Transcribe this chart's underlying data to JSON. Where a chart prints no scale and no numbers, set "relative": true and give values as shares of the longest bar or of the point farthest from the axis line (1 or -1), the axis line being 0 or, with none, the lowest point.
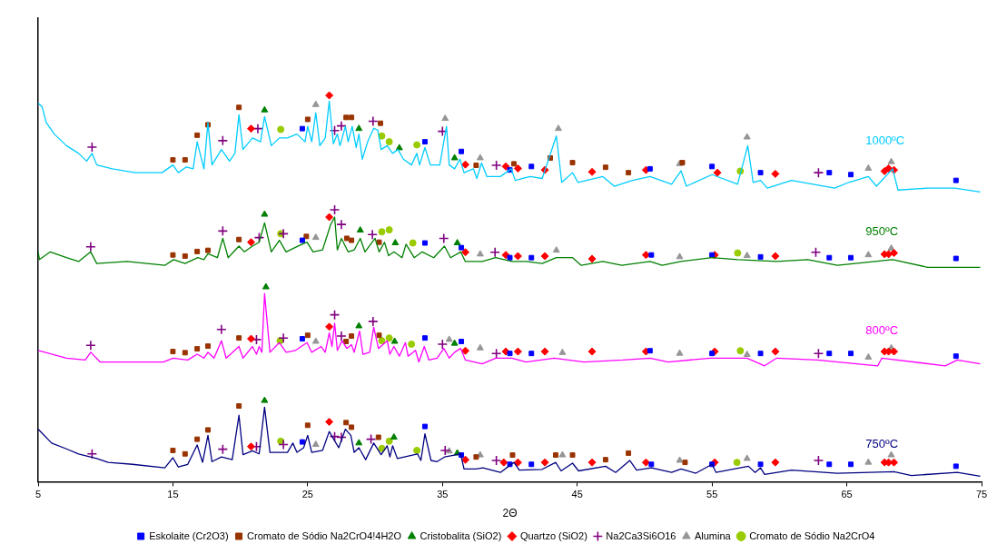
{
  "chart_data": {
    "type": "line",
    "xlabel": "2Θ",
    "xlim": [
      5,
      75
    ],
    "xticks": [
      5,
      15,
      25,
      35,
      45,
      55,
      65,
      75
    ],
    "relative": true,
    "legend": "bottom",
    "series": [
      {
        "type": "line",
        "name": "1000ºC",
        "color": "#00ccff",
        "marker": "none",
        "x": [
          5,
          5.3,
          5.6,
          6.2,
          7.1,
          8,
          8.6,
          9,
          9.35,
          10.5,
          12.2,
          14.2,
          15,
          15.4,
          16,
          16.5,
          16.8,
          17.3,
          17.6,
          17.9,
          18.6,
          19.2,
          19.6,
          19.9,
          20.2,
          20.9,
          21.5,
          21.8,
          22.3,
          22.9,
          23.5,
          24.2,
          24.8,
          25,
          25.3,
          25.6,
          25.9,
          26.3,
          26.6,
          26.9,
          27.2,
          27.4,
          27.8,
          28,
          28.3,
          28.6,
          28.8,
          29.05,
          29.45,
          29.9,
          30.2,
          30.45,
          30.9,
          31.3,
          31.7,
          32.1,
          32.7,
          33.1,
          33.3,
          33.7,
          34.1,
          34.8,
          35.3,
          35.5,
          35.9,
          36.3,
          36.6,
          37.3,
          37.55,
          37.9,
          38.3,
          39.3,
          40.1,
          40.4,
          41.5,
          42.4,
          43.45,
          43.85,
          44.65,
          45.05,
          46.9,
          47.75,
          49.1,
          50.4,
          52,
          52.7,
          53.1,
          55,
          56.9,
          57.65,
          58.05,
          58.6,
          59.1,
          60.9,
          64.1,
          65.15,
          66.6,
          67.2,
          68.4,
          68.8,
          71,
          73,
          74.9
        ],
        "values": [
          0.98,
          0.97,
          0.93,
          0.9,
          0.87,
          0.85,
          0.83,
          0.85,
          0.82,
          0.81,
          0.8,
          0.8,
          0.82,
          0.8,
          0.815,
          0.81,
          0.88,
          0.81,
          0.93,
          0.82,
          0.86,
          0.83,
          0.85,
          0.95,
          0.86,
          0.89,
          0.88,
          0.945,
          0.87,
          0.89,
          0.89,
          0.9,
          0.88,
          0.92,
          0.88,
          0.955,
          0.87,
          0.89,
          0.985,
          0.875,
          0.9,
          0.87,
          0.92,
          0.88,
          0.92,
          0.865,
          0.9,
          0.835,
          0.88,
          0.915,
          0.91,
          0.86,
          0.87,
          0.85,
          0.86,
          0.835,
          0.82,
          0.85,
          0.82,
          0.865,
          0.82,
          0.82,
          0.92,
          0.82,
          0.81,
          0.835,
          0.8,
          0.81,
          0.785,
          0.825,
          0.79,
          0.79,
          0.81,
          0.78,
          0.79,
          0.785,
          0.895,
          0.775,
          0.8,
          0.775,
          0.79,
          0.765,
          0.78,
          0.79,
          0.77,
          0.805,
          0.765,
          0.795,
          0.77,
          0.87,
          0.775,
          0.78,
          0.76,
          0.78,
          0.76,
          0.775,
          0.79,
          0.765,
          0.81,
          0.755,
          0.76,
          0.76,
          0.75
        ]
      },
      {
        "type": "line",
        "name": "950ºC",
        "color": "#008000",
        "marker": "none",
        "x": [
          5,
          5.1,
          5.9,
          7.1,
          8,
          8.9,
          9.35,
          11.6,
          14.4,
          15.05,
          15.9,
          16.85,
          17.3,
          17.6,
          18.3,
          18.7,
          19.1,
          19.9,
          20.3,
          20.9,
          21.4,
          21.8,
          22.3,
          22.9,
          23.4,
          24.3,
          24.95,
          25.4,
          26.1,
          26.7,
          27,
          27.2,
          27.5,
          28,
          28.45,
          28.9,
          29.25,
          30,
          30.3,
          30.7,
          31,
          31.4,
          32,
          32.3,
          32.9,
          33.5,
          34.35,
          35.15,
          35.6,
          36.35,
          36.7,
          37.95,
          38.95,
          40.15,
          41.2,
          42.4,
          43.45,
          44.65,
          45.3,
          46.9,
          48.3,
          50.4,
          51.3,
          52.7,
          55,
          56.9,
          59.8,
          62.1,
          64.3,
          68.4,
          71,
          74.9
        ],
        "values": [
          0.595,
          0.575,
          0.595,
          0.58,
          0.57,
          0.595,
          0.565,
          0.57,
          0.56,
          0.575,
          0.565,
          0.58,
          0.575,
          0.59,
          0.58,
          0.63,
          0.58,
          0.61,
          0.595,
          0.61,
          0.62,
          0.67,
          0.595,
          0.625,
          0.595,
          0.61,
          0.62,
          0.595,
          0.6,
          0.665,
          0.685,
          0.6,
          0.63,
          0.595,
          0.6,
          0.63,
          0.595,
          0.63,
          0.595,
          0.62,
          0.585,
          0.595,
          0.58,
          0.615,
          0.58,
          0.595,
          0.58,
          0.61,
          0.58,
          0.595,
          0.57,
          0.57,
          0.58,
          0.57,
          0.57,
          0.565,
          0.58,
          0.58,
          0.56,
          0.57,
          0.56,
          0.57,
          0.56,
          0.57,
          0.58,
          0.575,
          0.57,
          0.575,
          0.56,
          0.575,
          0.555,
          0.555
        ]
      },
      {
        "type": "line",
        "name": "800ºC",
        "color": "#ff00ff",
        "marker": "none",
        "x": [
          5,
          7.1,
          8.5,
          8.9,
          9.6,
          12.7,
          14.3,
          15,
          16.1,
          16.8,
          17.3,
          17.6,
          18.05,
          18.6,
          18.95,
          19.9,
          20.2,
          20.9,
          21.2,
          21.4,
          21.6,
          21.8,
          22.2,
          22.9,
          23.4,
          24.1,
          24.95,
          25.3,
          26,
          26.3,
          26.6,
          26.8,
          27,
          27.2,
          27.55,
          27.9,
          28.25,
          28.45,
          28.85,
          29.1,
          29.6,
          29.9,
          30.25,
          30.9,
          31.1,
          31.4,
          31.8,
          32.25,
          32.45,
          33,
          33.25,
          33.65,
          34,
          34.6,
          35.1,
          35.5,
          35.9,
          36.35,
          36.7,
          37.95,
          38.95,
          40.15,
          41.2,
          43.3,
          45.5,
          48.4,
          50.4,
          51.75,
          54.9,
          57.6,
          58.9,
          59.8,
          62.8,
          67.3,
          67.6,
          72.3,
          73.2,
          74.9
        ],
        "values": [
          0.34,
          0.32,
          0.315,
          0.335,
          0.31,
          0.31,
          0.31,
          0.32,
          0.315,
          0.33,
          0.32,
          0.335,
          0.32,
          0.365,
          0.32,
          0.35,
          0.32,
          0.35,
          0.33,
          0.35,
          0.335,
          0.487,
          0.335,
          0.36,
          0.335,
          0.34,
          0.36,
          0.335,
          0.35,
          0.335,
          0.385,
          0.35,
          0.41,
          0.34,
          0.365,
          0.345,
          0.355,
          0.335,
          0.39,
          0.33,
          0.335,
          0.4,
          0.345,
          0.365,
          0.33,
          0.35,
          0.325,
          0.36,
          0.325,
          0.34,
          0.31,
          0.35,
          0.315,
          0.32,
          0.345,
          0.32,
          0.335,
          0.345,
          0.315,
          0.305,
          0.32,
          0.32,
          0.31,
          0.32,
          0.31,
          0.315,
          0.32,
          0.31,
          0.32,
          0.32,
          0.3,
          0.32,
          0.315,
          0.3,
          0.32,
          0.3,
          0.315,
          0.305
        ]
      },
      {
        "type": "line",
        "name": "750ºC",
        "color": "#000080",
        "marker": "none",
        "x": [
          5,
          6,
          7.1,
          8,
          9.35,
          10.2,
          12,
          14.4,
          15,
          15.4,
          16.1,
          16.8,
          17.2,
          17.6,
          17.9,
          18.6,
          19.4,
          19.9,
          20.2,
          20.9,
          21.4,
          21.8,
          22.2,
          23.5,
          23.9,
          24.2,
          24.7,
          25,
          25.3,
          26.1,
          26.6,
          27.3,
          27.8,
          28.2,
          28.45,
          28.8,
          29.3,
          29.9,
          30.45,
          30.9,
          31.1,
          31.3,
          31.65,
          33.15,
          33.4,
          33.7,
          34.15,
          34.6,
          35.15,
          36.35,
          36.6,
          37.5,
          38,
          39.3,
          40.3,
          40.7,
          42.4,
          43.4,
          43.8,
          44.65,
          45.1,
          47.1,
          47.85,
          48.9,
          49.4,
          50.5,
          52,
          52.7,
          53.8,
          55,
          55.3,
          57.7,
          58.2,
          58.6,
          58.9,
          60.9,
          64.3,
          68.5,
          69.8,
          73.2,
          74.9
        ],
        "values": [
          0.136,
          0.1,
          0.085,
          0.072,
          0.06,
          0.05,
          0.045,
          0.036,
          0.062,
          0.038,
          0.045,
          0.095,
          0.05,
          0.12,
          0.052,
          0.064,
          0.057,
          0.172,
          0.07,
          0.08,
          0.072,
          0.193,
          0.076,
          0.076,
          0.1,
          0.076,
          0.088,
          0.12,
          0.076,
          0.081,
          0.13,
          0.088,
          0.136,
          0.12,
          0.076,
          0.088,
          0.057,
          0.1,
          0.07,
          0.093,
          0.064,
          0.093,
          0.06,
          0.072,
          0.055,
          0.124,
          0.055,
          0.052,
          0.064,
          0.072,
          0.033,
          0.033,
          0.036,
          0.024,
          0.05,
          0.03,
          0.032,
          0.05,
          0.028,
          0.048,
          0.028,
          0.04,
          0.024,
          0.055,
          0.03,
          0.036,
          0.024,
          0.033,
          0.022,
          0.045,
          0.024,
          0.04,
          0.024,
          0.036,
          0.019,
          0.03,
          0.022,
          0.026,
          0.016,
          0.024,
          0.014
        ]
      },
      {
        "type": "scatter",
        "name": "Eskolaite (Cr2O3)",
        "color": "#0000ff",
        "marker": "square",
        "x": [
          24.6,
          33.7,
          36.4,
          40,
          41.6,
          50.4,
          55,
          58.6,
          63.7,
          65.3,
          73.1,
          24.6,
          33.7,
          36.4,
          40,
          41.6,
          50.5,
          55,
          58.6,
          63.7,
          65.3,
          73.1,
          24.6,
          33.7,
          36.4,
          40,
          41.6,
          50.4,
          55,
          58.6,
          63.7,
          65.3,
          73.1,
          24.6,
          33.7,
          36.4,
          40,
          41.6,
          50.5,
          55,
          58.6,
          63.7,
          65.3,
          73.1
        ],
        "values": [
          0.914,
          0.88,
          0.855,
          0.807,
          0.816,
          0.81,
          0.816,
          0.8,
          0.8,
          0.795,
          0.78,
          0.625,
          0.618,
          0.606,
          0.58,
          0.58,
          0.587,
          0.587,
          0.582,
          0.58,
          0.58,
          0.578,
          0.37,
          0.372,
          0.363,
          0.332,
          0.332,
          0.339,
          0.332,
          0.332,
          0.332,
          0.332,
          0.325,
          0.103,
          0.143,
          0.069,
          0.045,
          0.045,
          0.045,
          0.045,
          0.045,
          0.045,
          0.045,
          0.04
        ]
      },
      {
        "type": "scatter",
        "name": "Cromato de Sódio Na2CrO4!4H2O",
        "color": "#993300",
        "marker": "square",
        "x": [
          15,
          15.9,
          16.8,
          17.6,
          19.9,
          25,
          27.85,
          28.25,
          30.4,
          37.5,
          40.3,
          43,
          44.65,
          47.1,
          48.8,
          52.8,
          15,
          15.9,
          16.8,
          17.6,
          19.9,
          24.9,
          27.9,
          28.25,
          30.3,
          15,
          15.9,
          16.8,
          17.6,
          19.9,
          25,
          27.85,
          28.25,
          30.3,
          15,
          15.9,
          16.8,
          17.6,
          19.9,
          25,
          27.85,
          28.25,
          30.25,
          37.5,
          40.2,
          43.4,
          44.65,
          47.1,
          48.8,
          53
        ],
        "values": [
          0.833,
          0.833,
          0.897,
          0.924,
          0.969,
          0.938,
          0.943,
          0.943,
          0.928,
          0.819,
          0.823,
          0.838,
          0.826,
          0.814,
          0.8,
          0.826,
          0.587,
          0.584,
          0.596,
          0.599,
          0.627,
          0.635,
          0.63,
          0.625,
          0.62,
          0.337,
          0.334,
          0.344,
          0.351,
          0.372,
          0.379,
          0.363,
          0.377,
          0.379,
          0.081,
          0.072,
          0.11,
          0.134,
          0.196,
          0.146,
          0.153,
          0.141,
          0.115,
          0.064,
          0.069,
          0.069,
          0.069,
          0.057,
          0.074,
          0.05
        ]
      },
      {
        "type": "scatter",
        "name": "Cristobalita (SiO2)",
        "color": "#008000",
        "marker": "triangle",
        "x": [
          21.8,
          28.8,
          31.8,
          35.9,
          21.8,
          28.9,
          31.5,
          36.1,
          21.9,
          28.8,
          31.45,
          35.9,
          21.8,
          28.8,
          31.4,
          36.1
        ],
        "values": [
          0.962,
          0.914,
          0.864,
          0.838,
          0.692,
          0.651,
          0.618,
          0.618,
          0.504,
          0.403,
          0.363,
          0.358,
          0.21,
          0.1,
          0.115,
          0.074
        ]
      },
      {
        "type": "scatter",
        "name": "Quartzo (SiO2)",
        "color": "#ff0000",
        "marker": "diamond",
        "x": [
          20.8,
          26.6,
          36.7,
          39.7,
          40.6,
          42.6,
          46.1,
          50.1,
          55.4,
          59.7,
          67.8,
          68.1,
          68.5,
          20.8,
          26.6,
          36.7,
          39.7,
          40.6,
          42.6,
          46.1,
          50.1,
          55.2,
          59.7,
          67.8,
          68.1,
          68.5,
          20.8,
          26.6,
          36.7,
          39.7,
          40.6,
          42.6,
          46.1,
          50.1,
          55.2,
          59.7,
          67.8,
          68.1,
          68.5,
          20.8,
          26.6,
          36.7,
          39.55,
          40.6,
          42.6,
          46.1,
          50.1,
          55.2,
          59.7,
          67.8,
          68.1,
          68.5
        ],
        "values": [
          0.914,
          1,
          0.821,
          0.816,
          0.811,
          0.807,
          0.802,
          0.807,
          0.8,
          0.797,
          0.804,
          0.811,
          0.807,
          0.62,
          0.685,
          0.594,
          0.587,
          0.584,
          0.584,
          0.577,
          0.587,
          0.587,
          0.584,
          0.589,
          0.589,
          0.592,
          0.37,
          0.401,
          0.339,
          0.337,
          0.337,
          0.337,
          0.337,
          0.337,
          0.337,
          0.337,
          0.337,
          0.337,
          0.337,
          0.091,
          0.155,
          0.057,
          0.05,
          0.05,
          0.05,
          0.05,
          0.05,
          0.05,
          0.05,
          0.05,
          0.05,
          0.05
        ]
      },
      {
        "type": "scatter",
        "name": "Na2Ca3Si6O16",
        "color": "#800080",
        "marker": "cross",
        "x": [
          9,
          18.7,
          21.3,
          27,
          27.5,
          29.85,
          35,
          39,
          62.9,
          8.9,
          18.7,
          21.4,
          23.2,
          27,
          27.5,
          29.8,
          35.1,
          38.9,
          62.7,
          8.9,
          18.6,
          21.2,
          23.2,
          27,
          27.5,
          29.85,
          35,
          39,
          62.9,
          9,
          18.7,
          21.2,
          23.2,
          27,
          27.5,
          29.7,
          35.2,
          39,
          62.9
        ],
        "values": [
          0.866,
          0.883,
          0.914,
          0.909,
          0.921,
          0.933,
          0.907,
          0.819,
          0.8,
          0.608,
          0.649,
          0.632,
          0.642,
          0.704,
          0.666,
          0.64,
          0.63,
          0.594,
          0.594,
          0.353,
          0.394,
          0.368,
          0.372,
          0.432,
          0.377,
          0.415,
          0.356,
          0.332,
          0.332,
          0.072,
          0.084,
          0.091,
          0.096,
          0.117,
          0.115,
          0.11,
          0.081,
          0.055,
          0.055
        ]
      },
      {
        "type": "scatter",
        "name": "Alumina",
        "color": "#969696",
        "marker": "triangle",
        "x": [
          25.6,
          35.2,
          37.8,
          43.6,
          52.6,
          57.6,
          66.6,
          68.3,
          25.6,
          37.8,
          43.45,
          52.6,
          57.6,
          66.6,
          68.3,
          25.6,
          35.5,
          37.8,
          43.9,
          52.6,
          57.6,
          66.6,
          68.3,
          25.6,
          35.5,
          37.8,
          43.9,
          52.6,
          57.6,
          66.6,
          68.3
        ],
        "values": [
          0.976,
          0.94,
          0.838,
          0.914,
          0.823,
          0.892,
          0.811,
          0.828,
          0.632,
          0.589,
          0.599,
          0.582,
          0.585,
          0.587,
          0.604,
          0.363,
          0.368,
          0.346,
          0.334,
          0.332,
          0.329,
          0.322,
          0.346,
          0.096,
          0.079,
          0.069,
          0.069,
          0.055,
          0.06,
          0.05,
          0.069
        ]
      },
      {
        "type": "scatter",
        "name": "Cromato de Sódio Na2CrO4",
        "color": "#99cc00",
        "marker": "circle",
        "x": [
          23,
          30.5,
          31.05,
          33.1,
          57.1,
          23,
          30.5,
          31.05,
          32.8,
          56.9,
          22.95,
          30.5,
          31.05,
          32.7,
          57.1,
          23,
          30.5,
          31.05,
          33.1,
          56.85
        ],
        "values": [
          0.912,
          0.895,
          0.88,
          0.872,
          0.804,
          0.642,
          0.647,
          0.652,
          0.618,
          0.592,
          0.365,
          0.365,
          0.372,
          0.356,
          0.339,
          0.105,
          0.086,
          0.105,
          0.081,
          0.05
        ]
      }
    ]
  }
}
